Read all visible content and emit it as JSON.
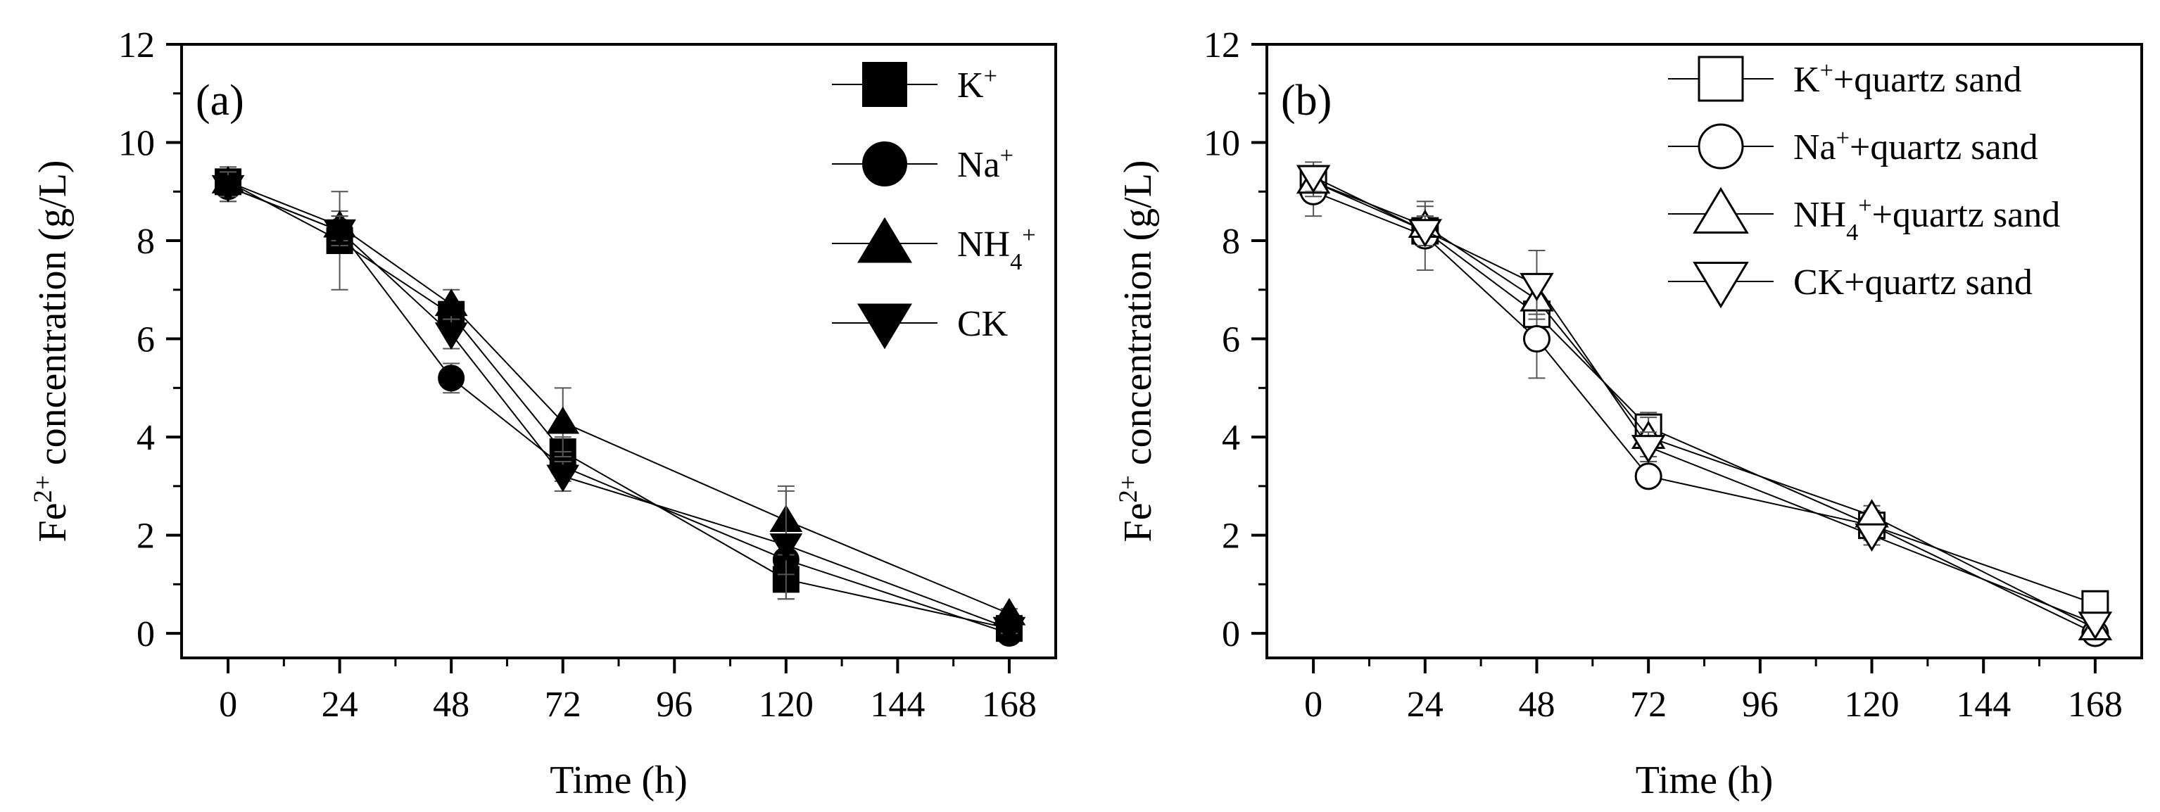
{
  "chart_data": [
    {
      "type": "line",
      "panel_label": "(a)",
      "xlabel": "Time (h)",
      "ylabel": {
        "pre": "Fe",
        "sup": "2+",
        "post": " concentration (g/L)"
      },
      "xticks": [
        "0",
        "24",
        "48",
        "72",
        "96",
        "120",
        "144",
        "168"
      ],
      "yticks": [
        "0",
        "2",
        "4",
        "6",
        "8",
        "10",
        "12"
      ],
      "xlim": [
        -10,
        178
      ],
      "ylim": [
        -0.5,
        12
      ],
      "legend_position": "top-right",
      "series": [
        {
          "name": "K+",
          "label": {
            "base": "K",
            "sup": "+",
            "sub": "",
            "rest": ""
          },
          "marker": "square",
          "filled": true,
          "x": [
            0,
            24,
            48,
            72,
            120,
            168
          ],
          "y": [
            9.2,
            8.0,
            6.5,
            3.7,
            1.1,
            0.1
          ],
          "err": [
            0.3,
            1.0,
            0.2,
            0.3,
            0.4,
            0.1
          ]
        },
        {
          "name": "Na+",
          "label": {
            "base": "Na",
            "sup": "+",
            "sub": "",
            "rest": ""
          },
          "marker": "circle",
          "filled": true,
          "x": [
            0,
            24,
            48,
            72,
            120,
            168
          ],
          "y": [
            9.1,
            8.2,
            5.2,
            3.4,
            1.5,
            0.0
          ],
          "err": [
            0.3,
            0.3,
            0.3,
            0.3,
            0.3,
            0.1
          ]
        },
        {
          "name": "NH4+",
          "label": {
            "base": "NH",
            "sup": "+",
            "sub": "4",
            "rest": ""
          },
          "marker": "triangle-up",
          "filled": true,
          "x": [
            0,
            24,
            48,
            72,
            120,
            168
          ],
          "y": [
            9.2,
            8.3,
            6.7,
            4.3,
            2.3,
            0.4
          ],
          "err": [
            0.3,
            0.3,
            0.3,
            0.7,
            0.7,
            0.1
          ]
        },
        {
          "name": "CK",
          "label": {
            "base": "CK",
            "sup": "",
            "sub": "",
            "rest": ""
          },
          "marker": "triangle-down",
          "filled": true,
          "x": [
            0,
            24,
            48,
            72,
            120,
            168
          ],
          "y": [
            9.1,
            8.2,
            6.1,
            3.2,
            1.8,
            0.1
          ],
          "err": [
            0.3,
            0.3,
            0.3,
            0.3,
            1.1,
            0.1
          ]
        }
      ]
    },
    {
      "type": "line",
      "panel_label": "(b)",
      "xlabel": "Time (h)",
      "ylabel": {
        "pre": "Fe",
        "sup": "2+",
        "post": " concentration (g/L)"
      },
      "xticks": [
        "0",
        "24",
        "48",
        "72",
        "96",
        "120",
        "144",
        "168"
      ],
      "yticks": [
        "0",
        "2",
        "4",
        "6",
        "8",
        "10",
        "12"
      ],
      "xlim": [
        -10,
        178
      ],
      "ylim": [
        -0.5,
        12
      ],
      "legend_position": "top-right",
      "series": [
        {
          "name": "K+ + quartz sand",
          "label": {
            "base": "K",
            "sup": "+",
            "sub": "",
            "rest": "+quartz sand"
          },
          "marker": "square",
          "filled": false,
          "x": [
            0,
            24,
            48,
            72,
            120,
            168
          ],
          "y": [
            9.2,
            8.2,
            6.5,
            4.2,
            2.2,
            0.6
          ],
          "err": [
            0.3,
            0.3,
            0.3,
            0.3,
            0.3,
            0.1
          ]
        },
        {
          "name": "Na+ + quartz sand",
          "label": {
            "base": "Na",
            "sup": "+",
            "sub": "",
            "rest": "+quartz sand"
          },
          "marker": "circle",
          "filled": false,
          "x": [
            0,
            24,
            48,
            72,
            120,
            168
          ],
          "y": [
            9.0,
            8.1,
            6.0,
            3.2,
            2.2,
            0.0
          ],
          "err": [
            0.5,
            0.7,
            0.8,
            0.1,
            0.2,
            0.1
          ]
        },
        {
          "name": "NH4+ + quartz sand",
          "label": {
            "base": "NH",
            "sup": "+",
            "sub": "4",
            "rest": "+quartz sand"
          },
          "marker": "triangle-up",
          "filled": false,
          "x": [
            0,
            24,
            48,
            72,
            120,
            168
          ],
          "y": [
            9.2,
            8.3,
            6.8,
            4.0,
            2.4,
            0.1
          ],
          "err": [
            0.3,
            0.4,
            0.3,
            0.4,
            0.2,
            0.1
          ]
        },
        {
          "name": "CK + quartz sand",
          "label": {
            "base": "CK",
            "sup": "",
            "sub": "",
            "rest": "+quartz sand"
          },
          "marker": "triangle-down",
          "filled": false,
          "x": [
            0,
            24,
            48,
            72,
            120,
            168
          ],
          "y": [
            9.3,
            8.2,
            7.1,
            3.8,
            2.0,
            0.2
          ],
          "err": [
            0.3,
            0.3,
            0.7,
            0.3,
            0.2,
            0.1
          ]
        }
      ]
    }
  ]
}
